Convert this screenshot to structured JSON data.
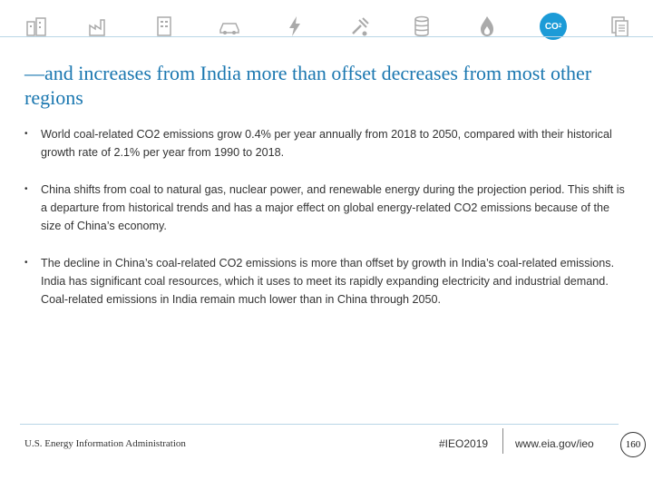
{
  "header": {
    "icons": [
      "buildings-icon",
      "industry-icon",
      "building-icon",
      "car-icon",
      "lightning-icon",
      "drill-icon",
      "barrel-icon",
      "flame-icon",
      "co2-icon",
      "document-icon"
    ],
    "co2_label": "CO",
    "co2_sub": "2",
    "accent": "#1c9bd7"
  },
  "title": "—and increases from India more than offset decreases from most other regions",
  "bullets": [
    "World coal-related CO2 emissions grow 0.4% per year annually from 2018 to 2050, compared with their historical growth rate of 2.1% per year from 1990 to 2018.",
    "China shifts from coal to natural gas, nuclear power, and renewable energy during the projection period. This shift is a departure from historical trends and has a major effect on global energy-related CO2 emissions because of the size of China’s economy.",
    "The decline in China’s coal-related CO2 emissions is more than offset by growth in India’s coal-related emissions. India has significant coal resources, which it uses to meet its rapidly expanding electricity and industrial demand. Coal-related emissions in India remain much lower than in China through 2050."
  ],
  "bullet_marker": "•",
  "footer": {
    "org": "U.S. Energy Information Administration",
    "hashtag": "#IEO2019",
    "url": "www.eia.gov/ieo",
    "page": "160"
  }
}
